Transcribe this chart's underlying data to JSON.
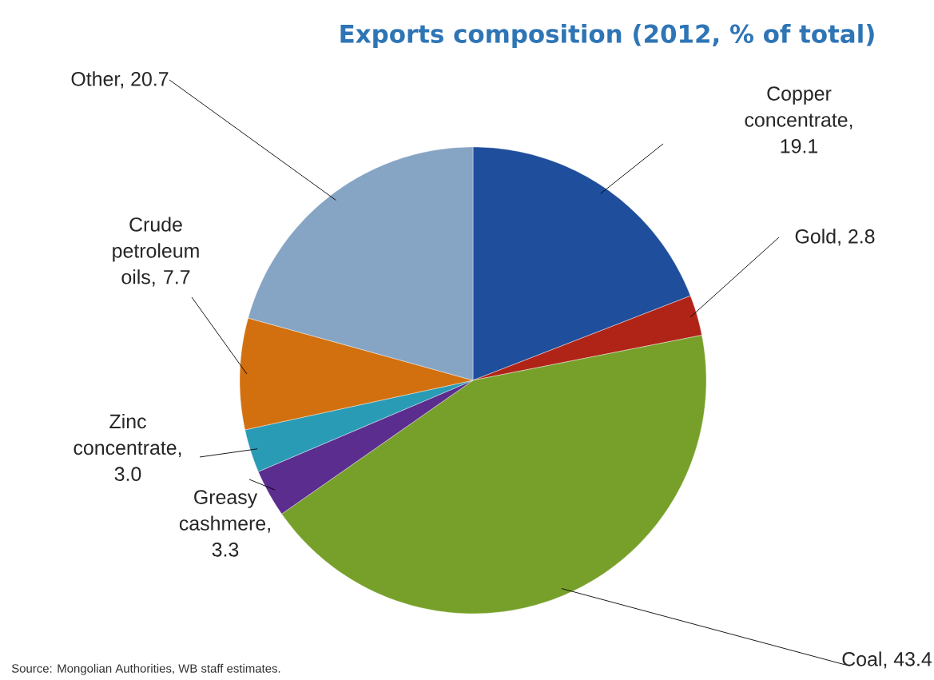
{
  "chart_data": {
    "type": "pie",
    "title": "Exports composition (2012, % of total)",
    "categories": [
      "Copper concentrate, 19.1",
      "Gold, 2.8",
      "Coal, 43.4",
      "Greasy cashmere, 3.3",
      "Zinc concentrate, 3.0",
      "Crude petroleum oils, 7.7",
      "Other, 20.7"
    ],
    "values": [
      19.1,
      2.8,
      43.4,
      3.3,
      3.0,
      7.7,
      20.7
    ],
    "colors": [
      "#1f4e9c",
      "#b02418",
      "#77a02a",
      "#5b2d8e",
      "#2a9bb5",
      "#d2700f",
      "#86a4c4"
    ],
    "annotations": [
      "Source: Mongolian Authorities, WB staff estimates."
    ]
  }
}
